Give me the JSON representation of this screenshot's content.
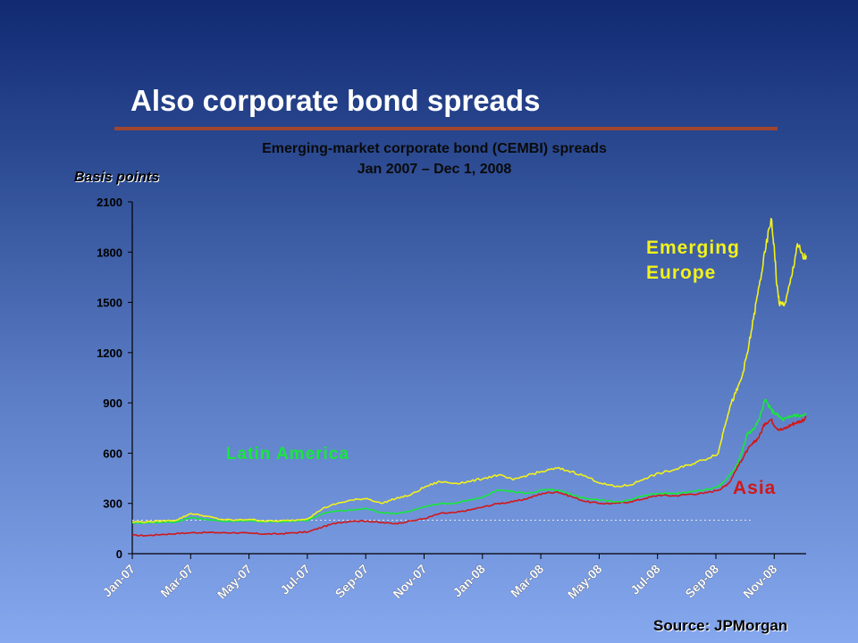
{
  "slide": {
    "title": "Also corporate bond spreads",
    "source": "Source: JPMorgan"
  },
  "chart_data": {
    "type": "line",
    "title": "Emerging-market corporate bond (CEMBI) spreads",
    "subtitle": "Jan 2007 – Dec 1, 2008",
    "ylabel": "Basis points",
    "xlabel": "",
    "ylim": [
      0,
      2100
    ],
    "yticks": [
      0,
      300,
      600,
      900,
      1200,
      1500,
      1800,
      2100
    ],
    "xticks": [
      "Jan-07",
      "Mar-07",
      "May-07",
      "Jul-07",
      "Sep-07",
      "Nov-07",
      "Jan-08",
      "Mar-08",
      "May-08",
      "Jul-08",
      "Sep-08",
      "Nov-08"
    ],
    "xlim": [
      0,
      23.0
    ],
    "x_unit": "months since Jan 2007",
    "reference_line": {
      "value": 200,
      "style": "dotted",
      "color": "#e6e6e6"
    },
    "series": [
      {
        "name": "Emerging Europe",
        "color": "#f2f21a",
        "x": [
          0,
          0.5,
          1,
          1.5,
          2,
          2.5,
          3,
          3.5,
          4,
          4.5,
          5,
          5.5,
          6,
          6.5,
          7,
          7.5,
          8,
          8.5,
          9,
          9.5,
          10,
          10.5,
          11,
          11.5,
          12,
          12.5,
          13,
          13.5,
          14,
          14.5,
          15,
          15.5,
          16,
          16.5,
          17,
          17.5,
          18,
          18.5,
          19,
          19.5,
          20,
          20.2,
          20.4,
          20.6,
          20.8,
          21,
          21.2,
          21.4,
          21.6,
          21.8,
          21.9,
          22,
          22.1,
          22.3,
          22.5,
          22.7,
          22.9,
          23.0
        ],
        "values": [
          190,
          190,
          195,
          200,
          240,
          225,
          205,
          200,
          205,
          195,
          195,
          200,
          210,
          270,
          300,
          320,
          330,
          300,
          330,
          350,
          400,
          430,
          420,
          430,
          450,
          470,
          440,
          470,
          490,
          510,
          490,
          460,
          420,
          400,
          410,
          450,
          480,
          500,
          530,
          560,
          600,
          750,
          880,
          960,
          1050,
          1200,
          1400,
          1600,
          1800,
          2000,
          1850,
          1600,
          1480,
          1500,
          1650,
          1850,
          1760,
          1780
        ]
      },
      {
        "name": "Latin America",
        "color": "#17e83a",
        "x": [
          0,
          0.5,
          1,
          1.5,
          2,
          2.5,
          3,
          3.5,
          4,
          4.5,
          5,
          5.5,
          6,
          6.5,
          7,
          7.5,
          8,
          8.5,
          9,
          9.5,
          10,
          10.5,
          11,
          11.5,
          12,
          12.5,
          13,
          13.5,
          14,
          14.5,
          15,
          15.5,
          16,
          16.5,
          17,
          17.5,
          18,
          18.5,
          19,
          19.5,
          20,
          20.2,
          20.4,
          20.6,
          20.8,
          21,
          21.2,
          21.4,
          21.6,
          21.8,
          22,
          22.2,
          22.4,
          22.6,
          22.8,
          23.0
        ],
        "values": [
          185,
          185,
          188,
          190,
          215,
          205,
          195,
          195,
          198,
          190,
          190,
          195,
          200,
          240,
          255,
          260,
          270,
          245,
          240,
          255,
          280,
          300,
          300,
          320,
          340,
          380,
          370,
          360,
          380,
          380,
          350,
          330,
          320,
          310,
          320,
          350,
          360,
          360,
          370,
          380,
          400,
          430,
          470,
          520,
          600,
          720,
          740,
          800,
          920,
          860,
          830,
          800,
          810,
          830,
          820,
          830
        ]
      },
      {
        "name": "Asia",
        "color": "#d01818",
        "x": [
          0,
          0.5,
          1,
          1.5,
          2,
          2.5,
          3,
          3.5,
          4,
          4.5,
          5,
          5.5,
          6,
          6.5,
          7,
          7.5,
          8,
          8.5,
          9,
          9.5,
          10,
          10.5,
          11,
          11.5,
          12,
          12.5,
          13,
          13.5,
          14,
          14.5,
          15,
          15.5,
          16,
          16.5,
          17,
          17.5,
          18,
          18.5,
          19,
          19.5,
          20,
          20.2,
          20.4,
          20.6,
          20.8,
          21,
          21.2,
          21.4,
          21.6,
          21.8,
          22,
          22.2,
          22.4,
          22.6,
          22.8,
          23.0
        ],
        "values": [
          110,
          108,
          115,
          120,
          125,
          127,
          125,
          125,
          122,
          118,
          118,
          125,
          130,
          160,
          185,
          195,
          195,
          185,
          180,
          195,
          210,
          240,
          245,
          260,
          280,
          300,
          310,
          330,
          360,
          370,
          340,
          310,
          300,
          300,
          310,
          330,
          350,
          345,
          355,
          360,
          380,
          400,
          430,
          500,
          560,
          620,
          660,
          700,
          780,
          800,
          750,
          740,
          760,
          780,
          790,
          810
        ]
      }
    ],
    "annotations": [
      {
        "text_lines": [
          "Emerging",
          "Europe"
        ],
        "series": "Emerging Europe",
        "color": "#f2f21a"
      },
      {
        "text_lines": [
          "Latin America"
        ],
        "series": "Latin America",
        "color": "#17e83a"
      },
      {
        "text_lines": [
          "Asia"
        ],
        "series": "Asia",
        "color": "#d01818"
      }
    ],
    "grid": false,
    "legend": "none"
  }
}
